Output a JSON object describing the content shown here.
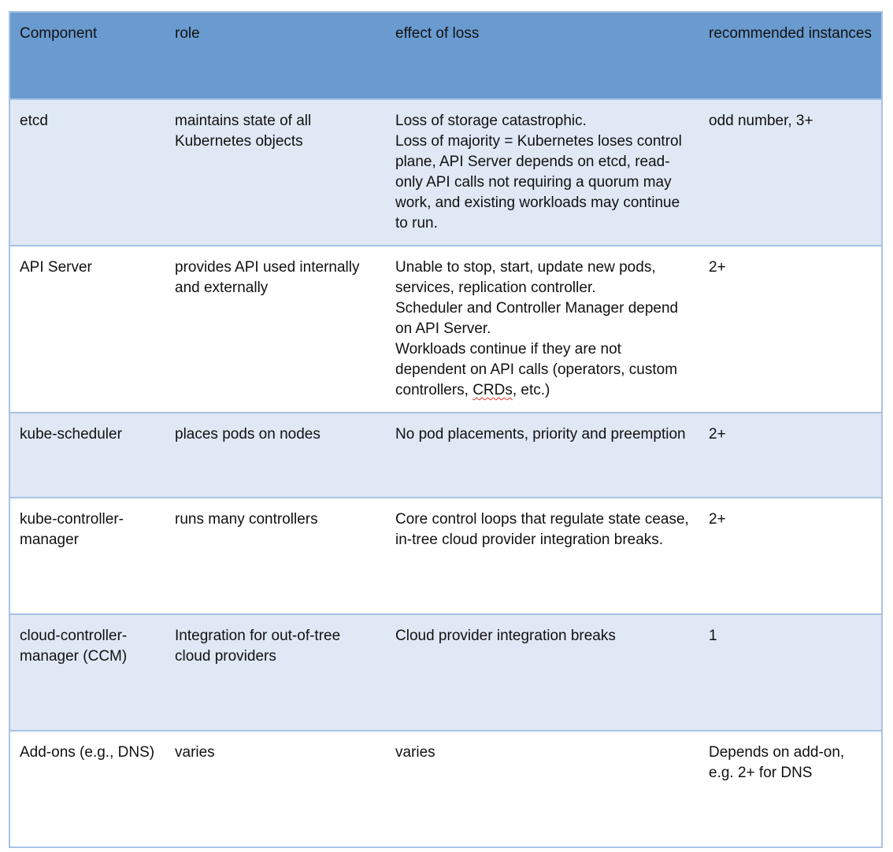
{
  "header": [
    "Component",
    "role",
    "effect of loss",
    "recommended instances"
  ],
  "rows": [
    {
      "component": "etcd",
      "role": "maintains state of all Kubernetes objects",
      "effect": [
        "Loss of storage catastrophic.",
        "Loss of majority = Kubernetes loses control plane, API Server depends on etcd, read-only API calls not requiring a quorum may work, and existing workloads may continue to run."
      ],
      "instances": "odd number, 3+"
    },
    {
      "component": "API Server",
      "role": "provides API used internally and externally",
      "effect": [
        "Unable to stop, start, update new pods, services, replication controller.",
        "Scheduler and Controller Manager depend on API Server.",
        "Workloads continue if they are not dependent on API calls (operators, custom controllers, CRDs, etc.)"
      ],
      "instances": "2+"
    },
    {
      "component": "kube-scheduler",
      "role": "places pods on nodes",
      "effect": [
        "No pod placements, priority and preemption"
      ],
      "instances": "2+"
    },
    {
      "component": "kube-controller-manager",
      "role": "runs many controllers",
      "effect": [
        "Core control loops that regulate state cease, in-tree cloud provider integration breaks."
      ],
      "instances": "2+"
    },
    {
      "component": "cloud-controller-manager (CCM)",
      "role": "Integration for out-of-tree cloud providers",
      "effect": [
        "Cloud provider integration breaks"
      ],
      "instances": "1"
    },
    {
      "component": "Add-ons (e.g., DNS)",
      "role": "varies",
      "effect": [
        "varies"
      ],
      "instances": "Depends on add-on, e.g. 2+ for DNS"
    }
  ]
}
